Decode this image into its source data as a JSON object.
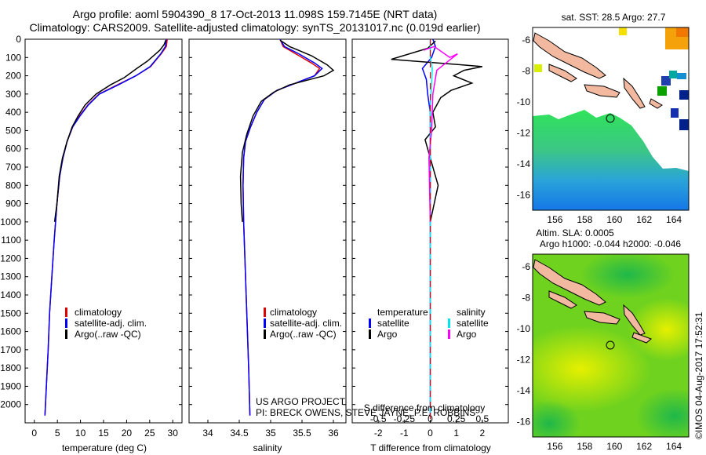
{
  "title": {
    "line1": "Argo profile: aoml 5904390_8 17-Oct-2013 11.098S 159.7145E (NRT data)",
    "line2": "Climatology: CARS2009. Satellite-adjusted climatology: synTS_20131017.nc (0.019d earlier)"
  },
  "credit": "©IMOS 04-Aug-2017 17:52:31",
  "project_note": {
    "line1": "US ARGO PROJECT",
    "line2": "PI: BRECK OWENS, STEVE JAYNE, P.E. ROBBINS"
  },
  "colors": {
    "climatology": "#e00000",
    "satellite": "#0000ff",
    "argo": "#000000",
    "sat_diff": "#00e5ee",
    "argo_diff": "#ff00ff"
  },
  "chart_data": [
    {
      "type": "line",
      "xlabel": "temperature (deg C)",
      "ylabel": "",
      "xlim": [
        -2,
        32
      ],
      "ylim": [
        2100,
        0
      ],
      "xticks": [
        0,
        5,
        10,
        15,
        20,
        25,
        30
      ],
      "yticks": [
        0,
        100,
        200,
        300,
        400,
        500,
        600,
        700,
        800,
        900,
        1000,
        1100,
        1200,
        1300,
        1400,
        1500,
        1600,
        1700,
        1800,
        1900,
        2000
      ],
      "legend": [
        "climatology",
        "satellite-adj. clim.",
        "Argo(..raw -QC)"
      ],
      "series": [
        {
          "name": "climatology",
          "color": "#e00000",
          "points": [
            [
              28.8,
              0
            ],
            [
              28.6,
              40
            ],
            [
              27.5,
              80
            ],
            [
              25.2,
              150
            ],
            [
              22,
              200
            ],
            [
              18,
              250
            ],
            [
              14,
              300
            ],
            [
              11.6,
              360
            ],
            [
              9.8,
              420
            ],
            [
              8.3,
              480
            ],
            [
              7.1,
              560
            ],
            [
              6.2,
              650
            ],
            [
              5.5,
              750
            ],
            [
              4.9,
              900
            ],
            [
              4.3,
              1100
            ],
            [
              3.8,
              1300
            ],
            [
              3.3,
              1500
            ],
            [
              3,
              1700
            ],
            [
              2.6,
              1900
            ],
            [
              2.3,
              2060
            ]
          ]
        },
        {
          "name": "satellite-adj. clim.",
          "color": "#0000ff",
          "points": [
            [
              28.6,
              0
            ],
            [
              28.4,
              40
            ],
            [
              27.4,
              80
            ],
            [
              25.1,
              150
            ],
            [
              22,
              200
            ],
            [
              18.2,
              250
            ],
            [
              14.1,
              300
            ],
            [
              11.7,
              360
            ],
            [
              9.9,
              420
            ],
            [
              8.3,
              480
            ],
            [
              7.1,
              560
            ],
            [
              6.2,
              650
            ],
            [
              5.5,
              750
            ],
            [
              4.9,
              900
            ],
            [
              4.3,
              1100
            ],
            [
              3.8,
              1300
            ],
            [
              3.3,
              1500
            ],
            [
              3,
              1700
            ],
            [
              2.6,
              1900
            ],
            [
              2.3,
              2060
            ]
          ]
        },
        {
          "name": "Argo(..raw -QC)",
          "color": "#000000",
          "points": [
            [
              28.5,
              5
            ],
            [
              28.1,
              30
            ],
            [
              27.2,
              60
            ],
            [
              24.5,
              120
            ],
            [
              22.2,
              160
            ],
            [
              19.5,
              210
            ],
            [
              16.5,
              250
            ],
            [
              13.4,
              300
            ],
            [
              11,
              360
            ],
            [
              9.5,
              420
            ],
            [
              8.2,
              480
            ],
            [
              7.1,
              560
            ],
            [
              6.1,
              650
            ],
            [
              5.4,
              750
            ],
            [
              4.9,
              900
            ],
            [
              4.4,
              1000
            ]
          ]
        }
      ]
    },
    {
      "type": "line",
      "xlabel": "salinity",
      "ylabel": "",
      "xlim": [
        33.7,
        36.2
      ],
      "ylim": [
        2100,
        0
      ],
      "xticks": [
        34,
        34.5,
        35,
        35.5,
        36
      ],
      "legend": [
        "climatology",
        "satellite-adj. clim.",
        "Argo(..raw -QC)"
      ],
      "series": [
        {
          "name": "climatology",
          "color": "#e00000",
          "points": [
            [
              35.15,
              0
            ],
            [
              35.2,
              40
            ],
            [
              35.4,
              80
            ],
            [
              35.65,
              130
            ],
            [
              35.78,
              160
            ],
            [
              35.7,
              200
            ],
            [
              35.4,
              240
            ],
            [
              35.1,
              280
            ],
            [
              34.9,
              330
            ],
            [
              34.78,
              400
            ],
            [
              34.68,
              480
            ],
            [
              34.6,
              560
            ],
            [
              34.57,
              650
            ],
            [
              34.56,
              800
            ],
            [
              34.57,
              1000
            ],
            [
              34.59,
              1200
            ],
            [
              34.61,
              1400
            ],
            [
              34.63,
              1600
            ],
            [
              34.65,
              1800
            ],
            [
              34.67,
              2060
            ]
          ]
        },
        {
          "name": "satellite-adj. clim.",
          "color": "#0000ff",
          "points": [
            [
              35.15,
              0
            ],
            [
              35.22,
              40
            ],
            [
              35.45,
              80
            ],
            [
              35.7,
              130
            ],
            [
              35.82,
              160
            ],
            [
              35.7,
              200
            ],
            [
              35.4,
              240
            ],
            [
              35.1,
              280
            ],
            [
              34.9,
              330
            ],
            [
              34.78,
              400
            ],
            [
              34.68,
              480
            ],
            [
              34.6,
              560
            ],
            [
              34.57,
              650
            ],
            [
              34.56,
              800
            ],
            [
              34.57,
              1000
            ],
            [
              34.59,
              1200
            ],
            [
              34.61,
              1400
            ],
            [
              34.63,
              1600
            ],
            [
              34.65,
              1800
            ],
            [
              34.67,
              2060
            ]
          ]
        },
        {
          "name": "Argo(..raw -QC)",
          "color": "#000000",
          "points": [
            [
              35.15,
              5
            ],
            [
              35.3,
              40
            ],
            [
              35.65,
              90
            ],
            [
              35.9,
              140
            ],
            [
              36,
              170
            ],
            [
              35.85,
              200
            ],
            [
              35.3,
              250
            ],
            [
              35.05,
              290
            ],
            [
              34.85,
              340
            ],
            [
              34.72,
              420
            ],
            [
              34.62,
              520
            ],
            [
              34.55,
              620
            ],
            [
              34.52,
              750
            ],
            [
              34.53,
              900
            ],
            [
              34.55,
              1000
            ]
          ]
        }
      ]
    },
    {
      "type": "line",
      "xlabel": "T difference from climatology",
      "xlabel2": "S difference from climatology",
      "xlim": [
        -3,
        3
      ],
      "x2ticks": [
        -0.5,
        -0.25,
        0,
        0.25,
        0.5
      ],
      "x2ticklabels": [
        "-0.5",
        "-0.25",
        "0",
        "0.25",
        "0.5"
      ],
      "ylim": [
        2100,
        0
      ],
      "xticks": [
        -2,
        -1,
        0,
        1,
        2
      ],
      "legend_temperature": [
        "temperature",
        "satellite",
        "Argo"
      ],
      "legend_salinity": [
        "salinity",
        "satellite",
        "Argo"
      ],
      "series": [
        {
          "name": "T satellite",
          "color": "#0000ff",
          "points": [
            [
              0.1,
              0
            ],
            [
              0.2,
              40
            ],
            [
              0.05,
              100
            ],
            [
              -0.3,
              160
            ],
            [
              -0.15,
              220
            ],
            [
              -0.1,
              300
            ],
            [
              0,
              400
            ],
            [
              0,
              600
            ],
            [
              0,
              1000
            ],
            [
              0,
              1500
            ],
            [
              0,
              2060
            ]
          ]
        },
        {
          "name": "T Argo",
          "color": "#000000",
          "points": [
            [
              0.2,
              10
            ],
            [
              -0.1,
              50
            ],
            [
              -1.5,
              110
            ],
            [
              1.2,
              140
            ],
            [
              2,
              150
            ],
            [
              1.3,
              170
            ],
            [
              0.9,
              200
            ],
            [
              1.6,
              240
            ],
            [
              0.8,
              280
            ],
            [
              0.4,
              320
            ],
            [
              0.1,
              400
            ],
            [
              0.2,
              480
            ],
            [
              -0.2,
              550
            ],
            [
              0,
              650
            ],
            [
              0.3,
              800
            ],
            [
              0,
              1000
            ]
          ]
        },
        {
          "name": "S satellite",
          "color": "#00e5ee",
          "points": [
            [
              0,
              0
            ],
            [
              0,
              100
            ],
            [
              0.15,
              160
            ],
            [
              0.1,
              250
            ],
            [
              0,
              350
            ],
            [
              0,
              1000
            ],
            [
              0,
              2060
            ]
          ]
        },
        {
          "name": "S Argo",
          "color": "#ff00ff",
          "points": [
            [
              -0.5,
              60
            ],
            [
              0.3,
              40
            ],
            [
              1.5,
              100
            ],
            [
              2.1,
              80
            ],
            [
              1.2,
              130
            ],
            [
              0.5,
              170
            ],
            [
              0.2,
              300
            ],
            [
              0.1,
              500
            ],
            [
              -0.1,
              650
            ],
            [
              0,
              1000
            ]
          ]
        }
      ]
    },
    {
      "type": "heatmap",
      "title": "sat. SST: 28.5 Argo: 27.7",
      "xticks": [
        156,
        158,
        160,
        162,
        164
      ],
      "yticks": [
        -6,
        -8,
        -10,
        -12,
        -14,
        -16
      ],
      "xlim": [
        154.5,
        165
      ],
      "ylim": [
        -17,
        -5.2
      ]
    },
    {
      "type": "heatmap",
      "title": "Altim. SLA: 0.0005",
      "subtitle": "Argo h1000: -0.044 h2000: -0.046",
      "xticks": [
        156,
        158,
        160,
        162,
        164
      ],
      "yticks": [
        -6,
        -8,
        -10,
        -12,
        -14,
        -16
      ],
      "xlim": [
        154.5,
        165
      ],
      "ylim": [
        -17,
        -5.2
      ]
    }
  ]
}
